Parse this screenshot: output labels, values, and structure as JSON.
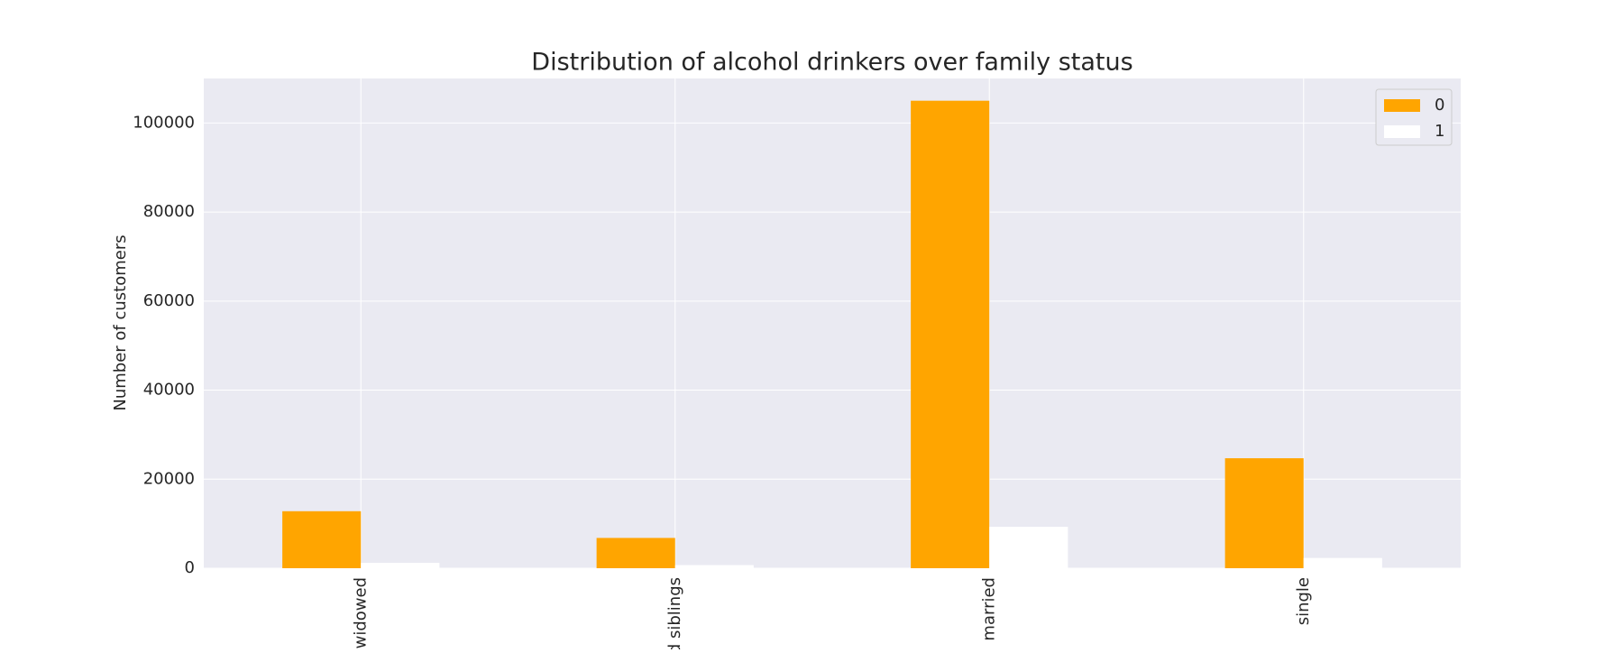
{
  "chart_data": {
    "type": "bar",
    "title": "Distribution of alcohol drinkers over family status",
    "y_label": "Number of customers",
    "categories": [
      "widowed",
      "d siblings",
      "married",
      "single"
    ],
    "series": [
      {
        "name": "0",
        "color": "#ffa500",
        "values": [
          12800,
          6800,
          105000,
          24700
        ]
      },
      {
        "name": "1",
        "color": "#ffffff",
        "values": [
          1200,
          700,
          9300,
          2300
        ]
      }
    ],
    "ylim": [
      0,
      110000
    ],
    "yticks": [
      0,
      20000,
      40000,
      60000,
      80000,
      100000
    ],
    "grid": true,
    "legend": "upper right"
  }
}
